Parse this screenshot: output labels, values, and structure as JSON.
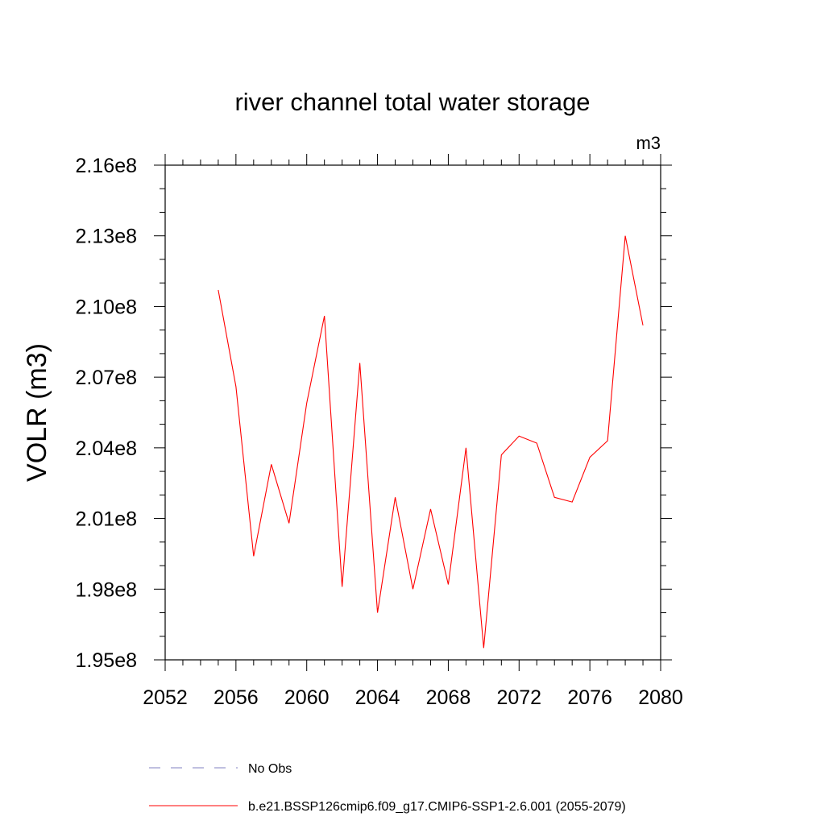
{
  "chart_data": {
    "type": "line",
    "title": "river channel total water storage",
    "units_label": "m3",
    "xlabel": "",
    "ylabel": "VOLR  (m3)",
    "xlim": [
      2052,
      2080
    ],
    "ylim": [
      195000000,
      216000000
    ],
    "x_ticks": [
      2052,
      2056,
      2060,
      2064,
      2068,
      2072,
      2076,
      2080
    ],
    "x_tick_labels": [
      "2052",
      "2056",
      "2060",
      "2064",
      "2068",
      "2072",
      "2076",
      "2080"
    ],
    "y_ticks": [
      195000000,
      198000000,
      201000000,
      204000000,
      207000000,
      210000000,
      213000000,
      216000000
    ],
    "y_tick_labels": [
      "1.95e8",
      "1.98e8",
      "2.01e8",
      "2.04e8",
      "2.07e8",
      "2.10e8",
      "2.13e8",
      "2.16e8"
    ],
    "series": [
      {
        "name": "b.e21.BSSP126cmip6.f09_g17.CMIP6-SSP1-2.6.001 (2055-2079)",
        "color": "#ff0000",
        "style": "solid",
        "x": [
          2055,
          2056,
          2057,
          2058,
          2059,
          2060,
          2061,
          2062,
          2063,
          2064,
          2065,
          2066,
          2067,
          2068,
          2069,
          2070,
          2071,
          2072,
          2073,
          2074,
          2075,
          2076,
          2077,
          2078,
          2079
        ],
        "values": [
          210700000,
          206600000,
          199400000,
          203300000,
          200800000,
          205900000,
          209600000,
          198100000,
          207600000,
          197000000,
          201900000,
          198000000,
          201400000,
          198200000,
          204000000,
          195500000,
          203700000,
          204500000,
          204200000,
          201900000,
          201700000,
          203600000,
          204300000,
          213000000,
          209200000
        ]
      }
    ],
    "legend": [
      {
        "label": "No Obs",
        "color": "#8080c0",
        "style": "dashed"
      },
      {
        "label": "b.e21.BSSP126cmip6.f09_g17.CMIP6-SSP1-2.6.001 (2055-2079)",
        "color": "#ff0000",
        "style": "solid"
      }
    ]
  }
}
